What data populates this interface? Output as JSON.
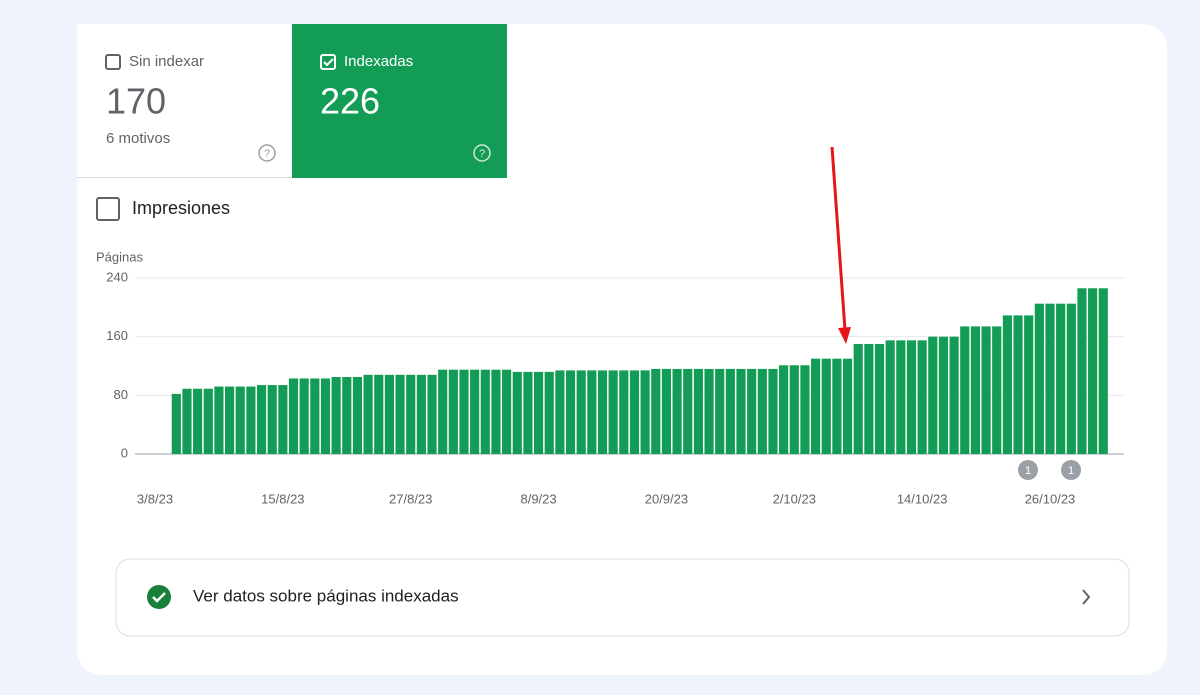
{
  "tabs": {
    "not_indexed": {
      "label": "Sin indexar",
      "count": "170",
      "detail": "6 motivos"
    },
    "indexed": {
      "label": "Indexadas",
      "count": "226"
    }
  },
  "impressions_toggle": "Impresiones",
  "chart_data": {
    "type": "bar",
    "y_label": "Páginas",
    "color": "#129c55",
    "grid": true,
    "ylim": [
      0,
      240
    ],
    "yticks": [
      0,
      80,
      160,
      240
    ],
    "categories": [
      "3/8/23",
      null,
      null,
      null,
      null,
      null,
      null,
      null,
      null,
      null,
      null,
      null,
      "15/8/23",
      null,
      null,
      null,
      null,
      null,
      null,
      null,
      null,
      null,
      null,
      null,
      "27/8/23",
      null,
      null,
      null,
      null,
      null,
      null,
      null,
      null,
      null,
      null,
      null,
      "8/9/23",
      null,
      null,
      null,
      null,
      null,
      null,
      null,
      null,
      null,
      null,
      null,
      "20/9/23",
      null,
      null,
      null,
      null,
      null,
      null,
      null,
      null,
      null,
      null,
      null,
      "2/10/23",
      null,
      null,
      null,
      null,
      null,
      null,
      null,
      null,
      null,
      null,
      null,
      "14/10/23",
      null,
      null,
      null,
      null,
      null,
      null,
      null,
      null,
      null,
      null,
      null,
      "26/10/23",
      null,
      null,
      null,
      null,
      null
    ],
    "values": [
      null,
      null,
      82,
      89,
      89,
      89,
      92,
      92,
      92,
      92,
      94,
      94,
      94,
      103,
      103,
      103,
      103,
      105,
      105,
      105,
      108,
      108,
      108,
      108,
      108,
      108,
      108,
      115,
      115,
      115,
      115,
      115,
      115,
      115,
      112,
      112,
      112,
      112,
      114,
      114,
      114,
      114,
      114,
      114,
      114,
      114,
      114,
      116,
      116,
      116,
      116,
      116,
      116,
      116,
      116,
      116,
      116,
      116,
      116,
      121,
      121,
      121,
      130,
      130,
      130,
      130,
      150,
      150,
      150,
      155,
      155,
      155,
      155,
      160,
      160,
      160,
      174,
      174,
      174,
      174,
      189,
      189,
      189,
      205,
      205,
      205,
      205,
      226,
      226,
      226
    ],
    "annotations": [
      "1",
      "1"
    ]
  },
  "link": "Ver datos sobre páginas indexadas"
}
